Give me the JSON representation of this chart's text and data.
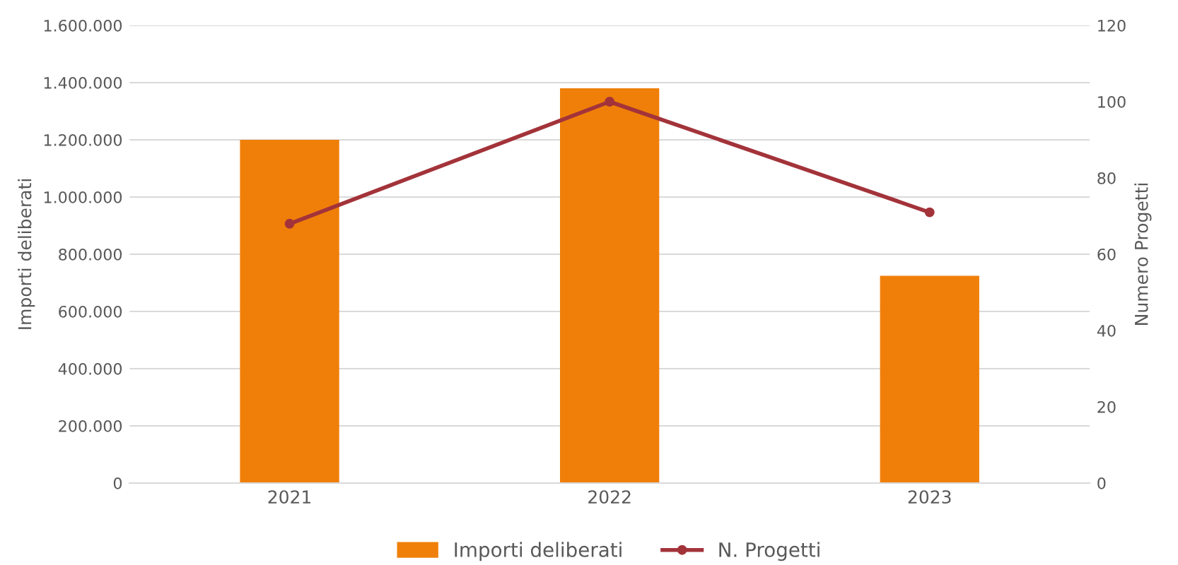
{
  "chart_data": {
    "type": "bar",
    "categories": [
      "2021",
      "2022",
      "2023"
    ],
    "series": [
      {
        "name": "Importi deliberati",
        "color": "#f07f09",
        "values": [
          1200000,
          1380000,
          725000
        ]
      },
      {
        "name": "N. Progetti",
        "type": "line",
        "axis": "y2",
        "color": "#a3333a",
        "marker": "circle",
        "values": [
          68,
          100,
          71
        ]
      }
    ],
    "ylabel": "Importi deliberati",
    "y2label": "Numero Progetti",
    "ylim": [
      0,
      1600000
    ],
    "yticks": [
      0,
      {
        "value": 200000,
        "label": "200.000"
      },
      {
        "value": 400000,
        "label": "400.000"
      },
      {
        "value": 600000,
        "label": "600.000"
      },
      {
        "value": 800000,
        "label": "800.000"
      },
      {
        "value": 1000000,
        "label": "1.000.000"
      },
      {
        "value": 1200000,
        "label": "1.200.000"
      },
      {
        "value": 1400000,
        "label": "1.400.000"
      },
      {
        "value": 1600000,
        "label": "1.600.000"
      }
    ],
    "y2lim": [
      0,
      120
    ],
    "y2ticks": [
      0,
      20,
      40,
      60,
      80,
      100,
      120
    ],
    "grid": "y",
    "legend": "bottom"
  }
}
